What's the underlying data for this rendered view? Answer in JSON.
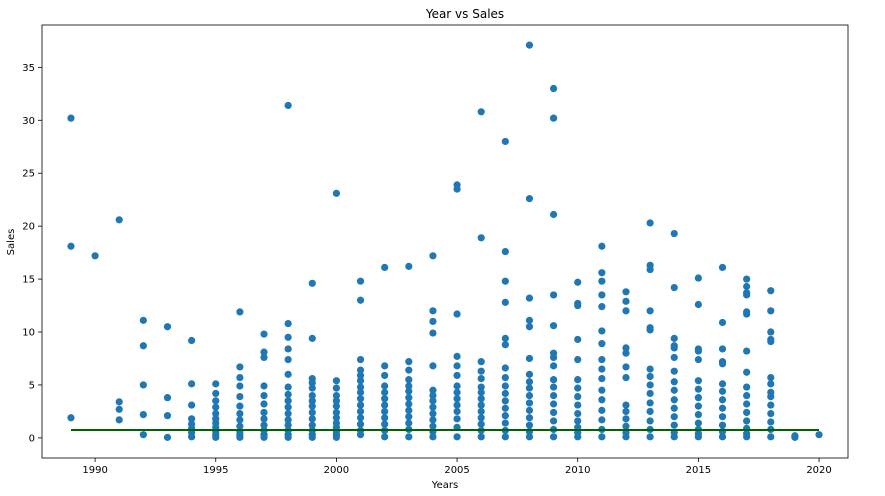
{
  "chart_data": {
    "type": "scatter",
    "title": "Year vs Sales",
    "xlabel": "Years",
    "ylabel": "Sales",
    "xlim": [
      1987.8,
      2021.2
    ],
    "ylim": [
      -1.9,
      39
    ],
    "xticks": [
      1990,
      1995,
      2000,
      2005,
      2010,
      2015,
      2020
    ],
    "yticks": [
      0,
      5,
      10,
      15,
      20,
      25,
      30,
      35
    ],
    "grid": false,
    "legend": "none",
    "colors": {
      "points": "#1f77b4",
      "fit_line": "#006400"
    },
    "fit_line": {
      "x": [
        1989,
        2020
      ],
      "y": [
        0.75,
        0.75
      ]
    },
    "series": [
      {
        "x": [
          1989,
          1989,
          1989,
          1990,
          1991,
          1991,
          1991,
          1991,
          1992,
          1992,
          1992,
          1992,
          1992,
          1993,
          1993,
          1993,
          1993,
          1994,
          1994,
          1994,
          1994,
          1994,
          1994,
          1994,
          1994,
          1995,
          1995,
          1995,
          1995,
          1995,
          1995,
          1995,
          1995,
          1995,
          1995,
          1995,
          1996,
          1996,
          1996,
          1996,
          1996,
          1996,
          1996,
          1996,
          1996,
          1996,
          1996,
          1996,
          1997,
          1997,
          1997,
          1997,
          1997,
          1997,
          1997,
          1997,
          1997,
          1997,
          1997,
          1997,
          1998,
          1998,
          1998,
          1998,
          1998,
          1998,
          1998,
          1998,
          1998,
          1998,
          1998,
          1998,
          1998,
          1998,
          1998,
          1998,
          1999,
          1999,
          1999,
          1999,
          1999,
          1999,
          1999,
          1999,
          1999,
          1999,
          1999,
          1999,
          1999,
          1999,
          2000,
          2000,
          2000,
          2000,
          2000,
          2000,
          2000,
          2000,
          2000,
          2000,
          2000,
          2000,
          2000,
          2001,
          2001,
          2001,
          2001,
          2001,
          2001,
          2001,
          2001,
          2001,
          2001,
          2001,
          2001,
          2001,
          2001,
          2001,
          2002,
          2002,
          2002,
          2002,
          2002,
          2002,
          2002,
          2002,
          2002,
          2002,
          2002,
          2002,
          2003,
          2003,
          2003,
          2003,
          2003,
          2003,
          2003,
          2003,
          2003,
          2003,
          2003,
          2003,
          2003,
          2004,
          2004,
          2004,
          2004,
          2004,
          2004,
          2004,
          2004,
          2004,
          2004,
          2004,
          2004,
          2004,
          2004,
          2005,
          2005,
          2005,
          2005,
          2005,
          2005,
          2005,
          2005,
          2005,
          2005,
          2005,
          2005,
          2005,
          2005,
          2006,
          2006,
          2006,
          2006,
          2006,
          2006,
          2006,
          2006,
          2006,
          2006,
          2006,
          2006,
          2006,
          2006,
          2007,
          2007,
          2007,
          2007,
          2007,
          2007,
          2007,
          2007,
          2007,
          2007,
          2007,
          2007,
          2007,
          2007,
          2007,
          2007,
          2008,
          2008,
          2008,
          2008,
          2008,
          2008,
          2008,
          2008,
          2008,
          2008,
          2008,
          2008,
          2008,
          2008,
          2008,
          2008,
          2009,
          2009,
          2009,
          2009,
          2009,
          2009,
          2009,
          2009,
          2009,
          2009,
          2009,
          2009,
          2009,
          2009,
          2009,
          2009,
          2010,
          2010,
          2010,
          2010,
          2010,
          2010,
          2010,
          2010,
          2010,
          2010,
          2010,
          2010,
          2010,
          2010,
          2011,
          2011,
          2011,
          2011,
          2011,
          2011,
          2011,
          2011,
          2011,
          2011,
          2011,
          2011,
          2011,
          2011,
          2011,
          2011,
          2012,
          2012,
          2012,
          2012,
          2012,
          2012,
          2012,
          2012,
          2012,
          2012,
          2012,
          2012,
          2012,
          2013,
          2013,
          2013,
          2013,
          2013,
          2013,
          2013,
          2013,
          2013,
          2013,
          2013,
          2013,
          2013,
          2013,
          2013,
          2014,
          2014,
          2014,
          2014,
          2014,
          2014,
          2014,
          2014,
          2014,
          2014,
          2014,
          2014,
          2014,
          2014,
          2014,
          2015,
          2015,
          2015,
          2015,
          2015,
          2015,
          2015,
          2015,
          2015,
          2015,
          2015,
          2015,
          2015,
          2015,
          2016,
          2016,
          2016,
          2016,
          2016,
          2016,
          2016,
          2016,
          2016,
          2016,
          2016,
          2016,
          2016,
          2017,
          2017,
          2017,
          2017,
          2017,
          2017,
          2017,
          2017,
          2017,
          2017,
          2017,
          2017,
          2017,
          2017,
          2017,
          2017,
          2018,
          2018,
          2018,
          2018,
          2018,
          2018,
          2018,
          2018,
          2018,
          2018,
          2018,
          2018,
          2018,
          2018,
          2019,
          2019,
          2019,
          2020
        ],
        "y": [
          30.2,
          18.1,
          1.9,
          17.2,
          20.6,
          3.4,
          2.7,
          1.7,
          11.1,
          8.7,
          5.0,
          2.2,
          0.3,
          10.5,
          3.8,
          2.1,
          0.05,
          9.2,
          5.1,
          3.1,
          1.8,
          1.3,
          0.9,
          0.5,
          0.1,
          5.1,
          4.2,
          3.5,
          2.9,
          2.3,
          1.8,
          1.4,
          1.0,
          0.6,
          0.3,
          0.05,
          11.9,
          6.7,
          5.7,
          4.9,
          3.9,
          3.0,
          2.3,
          1.7,
          1.1,
          0.6,
          0.3,
          0.05,
          9.8,
          8.1,
          7.6,
          4.9,
          4.0,
          3.2,
          2.4,
          1.8,
          1.2,
          0.7,
          0.3,
          0.05,
          31.4,
          10.8,
          9.5,
          8.4,
          7.4,
          6.0,
          4.8,
          4.1,
          3.5,
          2.9,
          2.3,
          1.7,
          1.2,
          0.7,
          0.3,
          0.05,
          14.6,
          9.4,
          5.6,
          5.2,
          4.7,
          4.0,
          3.5,
          3.0,
          2.4,
          1.8,
          1.2,
          0.7,
          0.3,
          0.05,
          23.1,
          5.4,
          4.7,
          4.0,
          3.5,
          3.0,
          2.4,
          1.9,
          1.4,
          1.0,
          0.6,
          0.3,
          0.05,
          14.8,
          13.0,
          7.4,
          6.4,
          5.9,
          5.4,
          4.8,
          4.3,
          3.7,
          3.1,
          2.5,
          1.9,
          1.3,
          0.7,
          0.3,
          16.1,
          6.8,
          5.9,
          4.9,
          4.3,
          3.7,
          3.1,
          2.5,
          1.9,
          1.3,
          0.7,
          0.1,
          16.2,
          7.2,
          6.4,
          5.5,
          4.9,
          4.4,
          3.8,
          3.2,
          2.6,
          2.0,
          1.4,
          0.8,
          0.1,
          17.2,
          12.0,
          11.0,
          9.9,
          6.8,
          4.5,
          4.0,
          3.5,
          2.9,
          2.3,
          1.7,
          1.1,
          0.6,
          0.1,
          23.9,
          23.5,
          11.7,
          7.7,
          6.8,
          5.9,
          4.9,
          4.3,
          3.7,
          3.1,
          2.5,
          1.8,
          1.0,
          0.1,
          30.8,
          18.9,
          7.2,
          6.3,
          5.6,
          4.8,
          4.3,
          3.7,
          3.1,
          2.5,
          1.9,
          1.3,
          0.7,
          0.1,
          28.0,
          17.6,
          14.8,
          12.8,
          9.4,
          8.8,
          6.6,
          5.7,
          4.9,
          4.2,
          3.5,
          2.8,
          2.1,
          1.4,
          0.7,
          0.1,
          37.1,
          22.6,
          13.2,
          11.1,
          10.5,
          7.5,
          6.0,
          5.3,
          4.7,
          4.0,
          3.3,
          2.6,
          1.9,
          1.2,
          0.6,
          0.1,
          33.0,
          30.2,
          21.1,
          13.5,
          10.6,
          8.0,
          7.6,
          6.8,
          5.5,
          4.8,
          4.0,
          3.2,
          2.4,
          1.6,
          0.8,
          0.1,
          14.7,
          12.7,
          12.5,
          9.3,
          7.4,
          5.5,
          4.7,
          3.9,
          3.1,
          2.3,
          1.6,
          1.0,
          0.5,
          0.1,
          18.1,
          15.6,
          14.8,
          13.5,
          12.4,
          10.1,
          8.9,
          7.4,
          6.5,
          5.6,
          4.5,
          3.6,
          2.6,
          1.7,
          0.8,
          0.1,
          13.8,
          12.9,
          12.0,
          8.5,
          8.0,
          6.7,
          5.7,
          3.1,
          2.5,
          1.8,
          1.1,
          0.5,
          0.1,
          20.3,
          16.3,
          15.9,
          12.0,
          10.4,
          10.2,
          6.5,
          5.8,
          5.0,
          4.2,
          3.3,
          2.5,
          1.6,
          0.8,
          0.1,
          19.3,
          14.2,
          9.4,
          8.7,
          8.5,
          7.6,
          6.3,
          5.3,
          4.5,
          3.6,
          2.8,
          2.0,
          1.2,
          0.5,
          0.1,
          15.1,
          12.6,
          8.4,
          8.2,
          7.4,
          5.4,
          4.6,
          3.8,
          3.0,
          2.2,
          1.4,
          0.8,
          0.4,
          0.1,
          16.1,
          10.9,
          8.4,
          7.2,
          7.0,
          5.1,
          4.4,
          3.6,
          2.8,
          2.0,
          1.2,
          0.6,
          0.1,
          15.0,
          14.3,
          13.7,
          13.5,
          11.9,
          11.7,
          8.2,
          6.2,
          4.8,
          4.0,
          3.2,
          2.4,
          1.6,
          0.9,
          0.4,
          0.1,
          13.9,
          12.0,
          10.0,
          9.3,
          9.1,
          5.7,
          5.1,
          4.3,
          3.9,
          3.1,
          2.3,
          1.5,
          0.8,
          0.1,
          0.2,
          0.1,
          0.05,
          0.3
        ]
      }
    ]
  }
}
